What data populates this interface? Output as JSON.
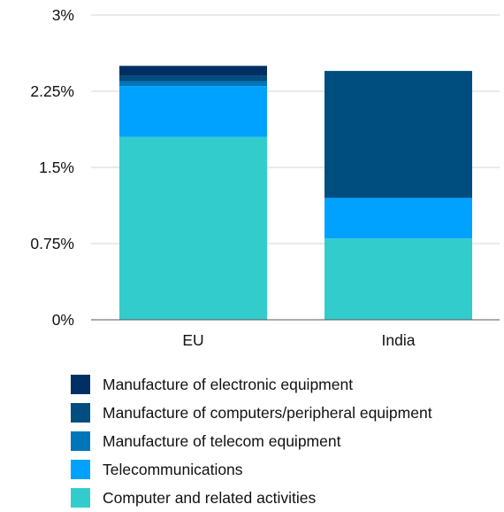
{
  "chart_data": {
    "type": "bar",
    "stacked": true,
    "categories": [
      "EU",
      "India"
    ],
    "ylim": [
      0,
      3
    ],
    "yticks": [
      "0%",
      "0.75%",
      "1.5%",
      "2.25%",
      "3%"
    ],
    "ytick_values": [
      0,
      0.75,
      1.5,
      2.25,
      3
    ],
    "grid": true,
    "legend_position": "bottom",
    "series": [
      {
        "name": "Computer and related activities",
        "color": "#33cccc",
        "values": [
          1.8,
          0.8
        ]
      },
      {
        "name": "Telecommunications",
        "color": "#00a2ff",
        "values": [
          0.5,
          0.4
        ]
      },
      {
        "name": "Manufacture of telecom equipment",
        "color": "#0076ba",
        "values": [
          0.05,
          0.0
        ]
      },
      {
        "name": "Manufacture of computers/peripheral equipment",
        "color": "#004d80",
        "values": [
          0.05,
          1.25
        ]
      },
      {
        "name": "Manufacture of electronic equipment",
        "color": "#003063",
        "values": [
          0.1,
          0.0
        ]
      }
    ]
  }
}
